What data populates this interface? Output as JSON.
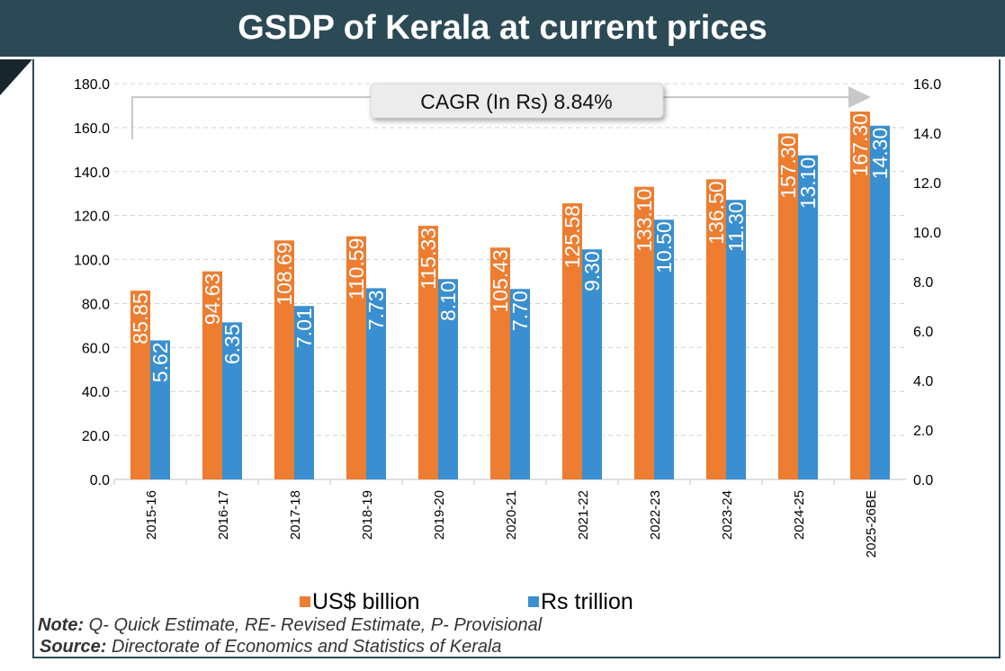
{
  "title": "GSDP of Kerala at current prices",
  "annotation": "CAGR (In Rs) 8.84%",
  "note_label": "Note:",
  "note_text": " Q- Quick Estimate, RE- Revised Estimate, P- Provisional",
  "source_label": "Source:",
  "source_text": " Directorate of Economics and Statistics of Kerala",
  "chart_data": {
    "type": "bar",
    "title": "GSDP of Kerala at current prices",
    "categories": [
      "2015-16",
      "2016-17",
      "2017-18",
      "2018-19",
      "2019-20",
      "2020-21",
      "2021-22",
      "2022-23",
      "2023-24",
      "2024-25",
      "2025-26BE"
    ],
    "series": [
      {
        "name": "US$ billion",
        "axis": "left",
        "color": "#ed7d31",
        "values": [
          85.85,
          94.63,
          108.69,
          110.59,
          115.33,
          105.43,
          125.58,
          133.1,
          136.5,
          157.3,
          167.3
        ]
      },
      {
        "name": "Rs trillion",
        "axis": "right",
        "color": "#3a8fd0",
        "values": [
          5.62,
          6.35,
          7.01,
          7.73,
          8.1,
          7.7,
          9.3,
          10.5,
          11.3,
          13.1,
          14.3
        ]
      }
    ],
    "ylim_left": [
      0,
      180
    ],
    "yticks_left": [
      "0.0",
      "20.0",
      "40.0",
      "60.0",
      "80.0",
      "100.0",
      "120.0",
      "140.0",
      "160.0",
      "180.0"
    ],
    "ylim_right": [
      0,
      16
    ],
    "yticks_right": [
      "0.0",
      "2.0",
      "4.0",
      "6.0",
      "8.0",
      "10.0",
      "12.0",
      "14.0",
      "16.0"
    ],
    "labels_left": [
      "85.85",
      "94.63",
      "108.69",
      "110.59",
      "115.33",
      "105.43",
      "125.58",
      "133.10",
      "136.50",
      "157.30",
      "167.30"
    ],
    "labels_right": [
      "5.62",
      "6.35",
      "7.01",
      "7.73",
      "8.10",
      "7.70",
      "9.30",
      "10.50",
      "11.30",
      "13.10",
      "14.30"
    ],
    "grid": true,
    "legend": "bottom"
  }
}
